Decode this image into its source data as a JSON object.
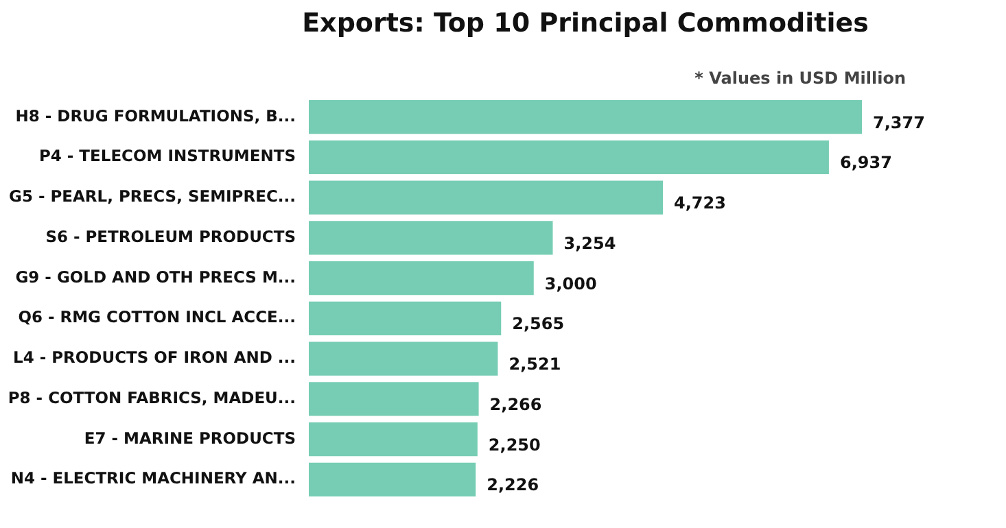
{
  "chart_data": {
    "type": "bar",
    "orientation": "horizontal",
    "title": "Exports: Top 10 Principal Commodities",
    "annotations": [
      "* Values in USD Million"
    ],
    "categories": [
      "H8 - DRUG FORMULATIONS, B...",
      "P4 - TELECOM INSTRUMENTS",
      "G5 - PEARL, PRECS, SEMIPREC...",
      "S6 - PETROLEUM PRODUCTS",
      "G9 - GOLD AND OTH PRECS M...",
      "Q6 - RMG COTTON INCL ACCE...",
      "L4 - PRODUCTS OF IRON AND ...",
      "P8 - COTTON FABRICS, MADEU...",
      "E7 - MARINE PRODUCTS",
      "N4 - ELECTRIC MACHINERY AN..."
    ],
    "values": [
      7377,
      6937,
      4723,
      3254,
      3000,
      2565,
      2521,
      2266,
      2250,
      2226
    ],
    "value_labels": [
      "7,377",
      "6,937",
      "4,723",
      "3,254",
      "3,000",
      "2,565",
      "2,521",
      "2,266",
      "2,250",
      "2,226"
    ],
    "color": "#76cdb3"
  }
}
